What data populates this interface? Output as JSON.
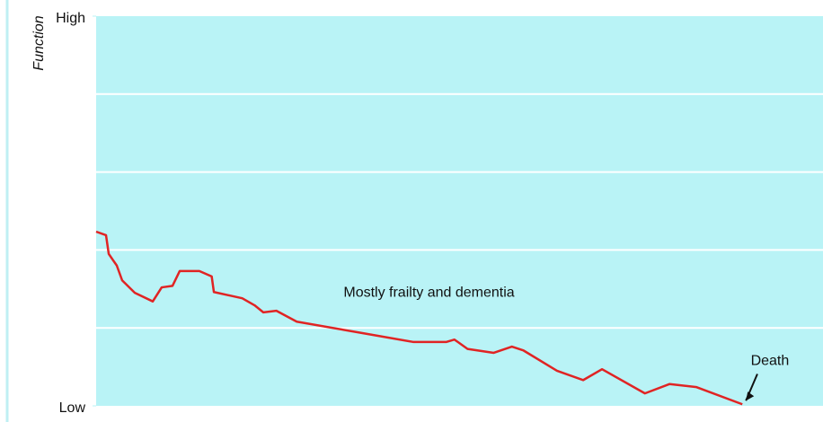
{
  "chart_data": {
    "type": "line",
    "y_label": "Function",
    "x": [
      0,
      1.36,
      1.73,
      2.84,
      3.58,
      5.32,
      7.79,
      9.02,
      10.51,
      11.5,
      14.2,
      15.9,
      16.2,
      20.1,
      21.8,
      23.0,
      24.8,
      27.6,
      36.2,
      43.6,
      48.2,
      49.3,
      51.1,
      54.7,
      57.2,
      58.8,
      63.4,
      67.0,
      69.6,
      75.5,
      78.9,
      82.6,
      88.9
    ],
    "series": [
      {
        "color": "#e02424",
        "values": [
          2.235,
          2.19,
          1.95,
          1.8,
          1.61,
          1.45,
          1.34,
          1.52,
          1.54,
          1.73,
          1.73,
          1.66,
          1.46,
          1.38,
          1.29,
          1.2,
          1.22,
          1.08,
          0.94,
          0.82,
          0.82,
          0.85,
          0.73,
          0.68,
          0.76,
          0.71,
          0.45,
          0.33,
          0.47,
          0.16,
          0.28,
          0.24,
          0.02
        ]
      }
    ],
    "xlim": [
      0,
      100
    ],
    "ylim": [
      0,
      5
    ],
    "yticks": [
      {
        "value": 5,
        "label": "High"
      },
      {
        "value": 0,
        "label": "Low"
      }
    ],
    "grid_lines": [
      1,
      2,
      3,
      4
    ],
    "plot_color": "#b9f3f6",
    "annotations": [
      {
        "text": "Mostly frailty and dementia",
        "x": 45.8,
        "y": 1.45
      },
      {
        "text": "Death",
        "x": 92.7,
        "y": 0.57
      }
    ]
  }
}
